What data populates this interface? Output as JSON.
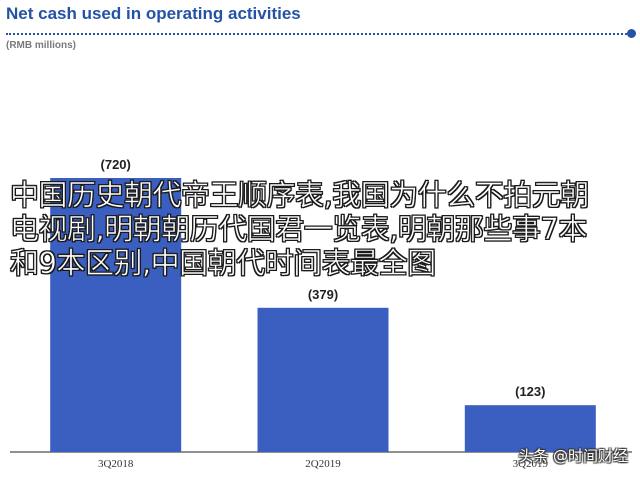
{
  "chart_data": {
    "type": "bar",
    "title": "Net cash used in operating activities",
    "ylabel": "(RMB millions)",
    "categories": [
      "3Q2018",
      "2Q2019",
      "3Q2019"
    ],
    "values": [
      720,
      379,
      123
    ],
    "data_labels": [
      "(720)",
      "(379)",
      "(123)"
    ],
    "ylim": [
      0,
      850
    ],
    "grid": false,
    "bar_color": "#3a5fc0",
    "title_color": "#2453a6"
  },
  "overlay": {
    "text": "中国历史朝代帝王顺序表,我国为什么不拍元朝电视剧,明朝朝历代国君一览表,明朝那些事7本和9本区别,中国朝代时间表最全图"
  },
  "watermark": {
    "text": "头条 @时间财经"
  }
}
